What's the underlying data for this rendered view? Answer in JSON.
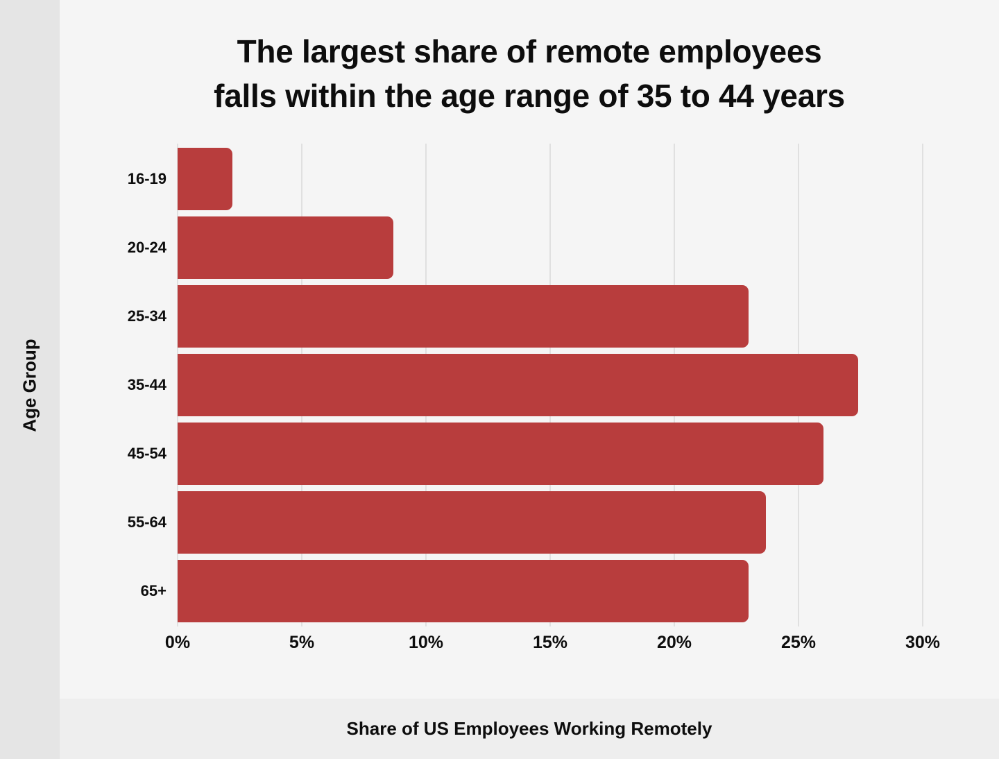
{
  "colors": {
    "bar": "#b83d3d",
    "panel_bg": "#f5f5f5",
    "left_strip_bg": "#e5e5e5",
    "bottom_strip_bg": "#eeeeee",
    "gridline": "#e0e0e0",
    "text": "#0d0d0d"
  },
  "chart_data": {
    "type": "bar",
    "orientation": "horizontal",
    "title": "The largest share of remote employees falls within the age range of 35 to 44 years",
    "title_lines": [
      "The largest share of remote employees",
      "falls within the age range of 35 to 44 years"
    ],
    "xlabel": "Share of US Employees Working Remotely",
    "ylabel": "Age Group",
    "categories": [
      "16-19",
      "20-24",
      "25-34",
      "35-44",
      "45-54",
      "55-64",
      "65+"
    ],
    "values": [
      2.2,
      8.7,
      23,
      27.4,
      26,
      23.7,
      23
    ],
    "value_unit": "%",
    "xlim": [
      0,
      30
    ],
    "x_ticks": [
      0,
      5,
      10,
      15,
      20,
      25,
      30
    ],
    "x_tick_labels": [
      "0%",
      "5%",
      "10%",
      "15%",
      "20%",
      "25%",
      "30%"
    ],
    "grid": "vertical",
    "legend": "none"
  }
}
